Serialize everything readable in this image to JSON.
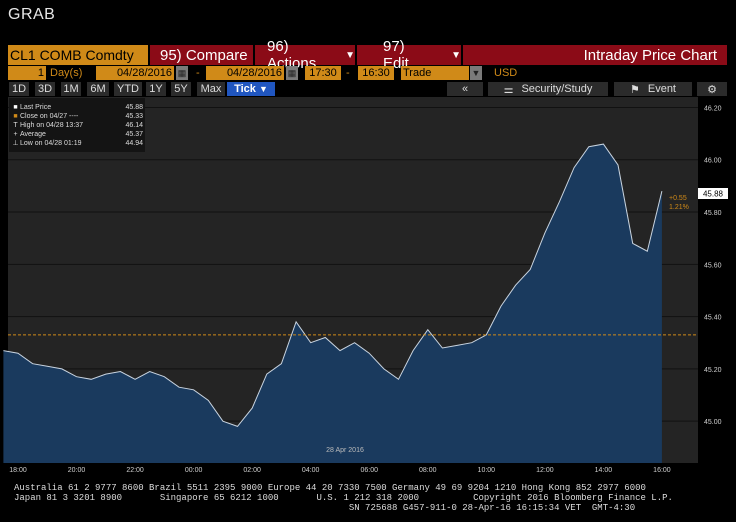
{
  "window_title": "GRAB",
  "toolbar": {
    "security": "CL1 COMB Comdty",
    "compare": "95) Compare",
    "actions": "96) Actions",
    "edit": "97) Edit",
    "chart_title": "Intraday Price Chart"
  },
  "params": {
    "period_value": "1",
    "period_unit": "Day(s)",
    "start_date": "04/28/2016",
    "end_date": "04/28/2016",
    "start_time": "17:30",
    "end_time": "16:30",
    "event_type": "Trade",
    "currency": "USD",
    "dash": "-"
  },
  "ranges": [
    "1D",
    "3D",
    "1M",
    "6M",
    "YTD",
    "1Y",
    "5Y",
    "Max"
  ],
  "tick_label": "Tick",
  "tick_caret": "▼",
  "right_tools": {
    "back": "«",
    "security_study": "Security/Study",
    "event": "Event"
  },
  "legend": [
    {
      "marker": "■",
      "label": "Last Price",
      "value": "45.88",
      "color": "#ffffff"
    },
    {
      "marker": "■",
      "label": "Close on 04/27 ----",
      "value": "45.33",
      "color": "#d08a18"
    },
    {
      "marker": "T",
      "label": "High on 04/28 13:37",
      "value": "46.14",
      "color": "#dddddd"
    },
    {
      "marker": "+",
      "label": "Average",
      "value": "45.37",
      "color": "#dddddd"
    },
    {
      "marker": "⊥",
      "label": "Low on 04/28 01:19",
      "value": "44.94",
      "color": "#dddddd"
    }
  ],
  "chart_data": {
    "type": "area",
    "x_tick_labels": [
      "18:00",
      "20:00",
      "22:00",
      "00:00",
      "02:00",
      "04:00",
      "06:00",
      "08:00",
      "10:00",
      "12:00",
      "14:00",
      "16:00"
    ],
    "date_label": "28 Apr 2016",
    "y_tick_labels": [
      "46.20",
      "46.00",
      "45.80",
      "45.60",
      "45.40",
      "45.20",
      "45.00"
    ],
    "ylim": [
      44.84,
      46.24
    ],
    "x_hours": [
      -6.5,
      -6,
      -5.5,
      -5,
      -4.5,
      -4,
      -3.5,
      -3,
      -2.5,
      -2,
      -1.5,
      -1,
      -0.5,
      0,
      0.5,
      1,
      1.5,
      2,
      2.5,
      3,
      3.5,
      4,
      4.5,
      5,
      5.5,
      6,
      6.5,
      7,
      7.5,
      8,
      8.5,
      9,
      9.5,
      10,
      10.5,
      11,
      11.5,
      12,
      12.5,
      13,
      13.5,
      14,
      14.5,
      15,
      15.5,
      16
    ],
    "values": [
      45.27,
      45.26,
      45.22,
      45.21,
      45.2,
      45.17,
      45.16,
      45.18,
      45.19,
      45.16,
      45.19,
      45.17,
      45.13,
      45.12,
      45.08,
      45.0,
      44.98,
      45.05,
      45.18,
      45.22,
      45.38,
      45.3,
      45.32,
      45.27,
      45.3,
      45.26,
      45.2,
      45.16,
      45.27,
      45.35,
      45.28,
      45.29,
      45.3,
      45.33,
      45.44,
      45.52,
      45.58,
      45.72,
      45.84,
      45.97,
      46.05,
      46.06,
      45.98,
      45.68,
      45.65,
      45.88
    ],
    "previous_close": 45.33,
    "last_price": "45.88",
    "last_change": "+0.55",
    "last_change_pct": "1.21%"
  },
  "footer": {
    "line1": "Australia 61 2 9777 8600 Brazil 5511 2395 9000 Europe 44 20 7330 7500 Germany 49 69 9204 1210 Hong Kong 852 2977 6000",
    "line2": "Japan 81 3 3201 8900       Singapore 65 6212 1000       U.S. 1 212 318 2000          Copyright 2016 Bloomberg Finance L.P.",
    "line3": "                                                              SN 725688 G457-911-0 28-Apr-16 16:15:34 VET  GMT-4:30"
  },
  "colors": {
    "accent": "#d08a18",
    "header_red": "#8b0b17",
    "area_fill": "#1a3a5e",
    "tick_blue": "#2056c0"
  }
}
